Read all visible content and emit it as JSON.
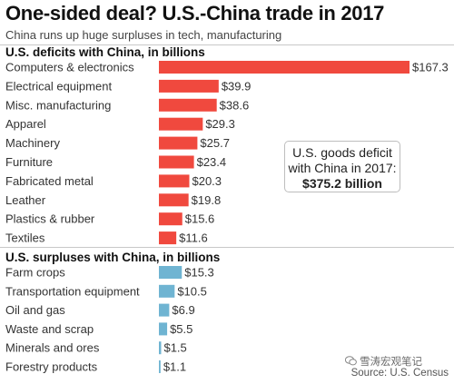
{
  "chart_data": {
    "type": "bar",
    "orientation": "horizontal",
    "title": "One-sided deal? U.S.-China trade in 2017",
    "subtitle": "China runs up huge surpluses in tech, manufacturing",
    "groups": [
      {
        "name": "U.S. deficits with China, in billions",
        "color": "#f0493e",
        "categories": [
          "Computers & electronics",
          "Electrical equipment",
          "Misc. manufacturing",
          "Apparel",
          "Machinery",
          "Furniture",
          "Fabricated metal",
          "Leather",
          "Plastics & rubber",
          "Textiles"
        ],
        "values": [
          167.3,
          39.9,
          38.6,
          29.3,
          25.7,
          23.4,
          20.3,
          19.8,
          15.6,
          11.6
        ],
        "labels": [
          "$167.3",
          "$39.9",
          "$38.6",
          "$29.3",
          "$25.7",
          "$23.4",
          "$20.3",
          "$19.8",
          "$15.6",
          "$11.6"
        ]
      },
      {
        "name": "U.S. surpluses with China, in billions",
        "color": "#6fb4d2",
        "categories": [
          "Farm crops",
          "Transportation equipment",
          "Oil and gas",
          "Waste and scrap",
          "Minerals and ores",
          "Forestry products"
        ],
        "values": [
          15.3,
          10.5,
          6.9,
          5.5,
          1.5,
          1.1
        ],
        "labels": [
          "$15.3",
          "$10.5",
          "$6.9",
          "$5.5",
          "$1.5",
          "$1.1"
        ]
      }
    ],
    "annotation": {
      "line1": "U.S. goods deficit",
      "line2": "with China in 2017:",
      "value": "$375.2 billion"
    },
    "source": "Source: U.S. Census"
  },
  "watermark": "雪涛宏观笔记"
}
